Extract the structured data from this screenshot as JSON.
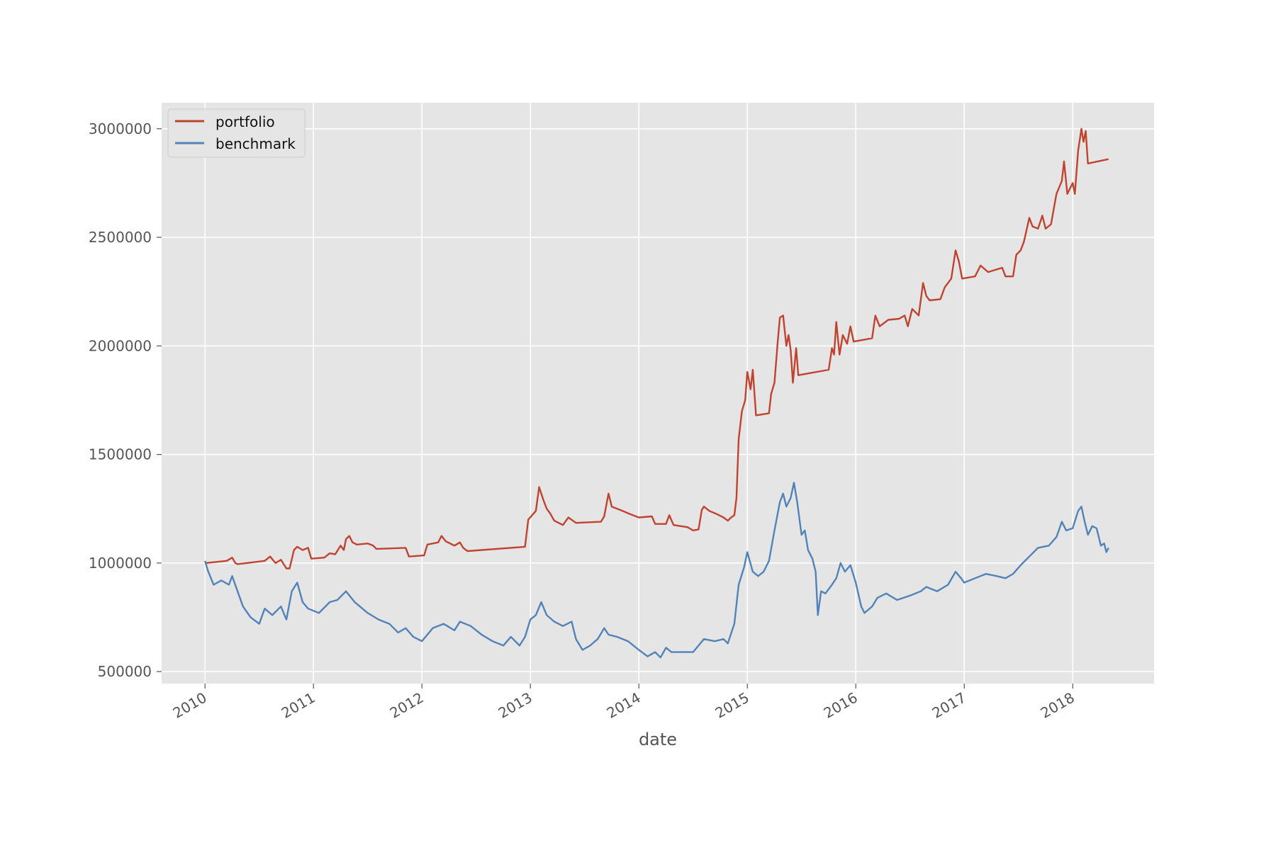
{
  "chart_data": {
    "type": "line",
    "title": "",
    "xlabel": "date",
    "ylabel": "",
    "xlim": [
      2009.6,
      2018.75
    ],
    "ylim": [
      445000,
      3120000
    ],
    "x_ticks": [
      2010,
      2011,
      2012,
      2013,
      2014,
      2015,
      2016,
      2017,
      2018
    ],
    "x_tick_labels": [
      "2010",
      "2011",
      "2012",
      "2013",
      "2014",
      "2015",
      "2016",
      "2017",
      "2018"
    ],
    "y_ticks": [
      500000,
      1000000,
      1500000,
      2000000,
      2500000,
      3000000
    ],
    "y_tick_labels": [
      "500000",
      "1000000",
      "1500000",
      "2000000",
      "2500000",
      "3000000"
    ],
    "grid": true,
    "legend_position": "top-left",
    "legend": [
      "portfolio",
      "benchmark"
    ],
    "colors": {
      "background": "#e5e5e5",
      "grid": "#ffffff",
      "portfolio": "#c0432f",
      "benchmark": "#5283b8"
    },
    "series": [
      {
        "name": "portfolio",
        "color": "#c0432f",
        "points": [
          [
            2010.0,
            1000000
          ],
          [
            2010.2,
            1010000
          ],
          [
            2010.25,
            1025000
          ],
          [
            2010.28,
            1000000
          ],
          [
            2010.3,
            995000
          ],
          [
            2010.55,
            1010000
          ],
          [
            2010.6,
            1030000
          ],
          [
            2010.65,
            1000000
          ],
          [
            2010.7,
            1015000
          ],
          [
            2010.75,
            975000
          ],
          [
            2010.78,
            975000
          ],
          [
            2010.82,
            1060000
          ],
          [
            2010.85,
            1075000
          ],
          [
            2010.9,
            1060000
          ],
          [
            2010.95,
            1070000
          ],
          [
            2010.98,
            1020000
          ],
          [
            2011.1,
            1025000
          ],
          [
            2011.15,
            1045000
          ],
          [
            2011.2,
            1040000
          ],
          [
            2011.25,
            1080000
          ],
          [
            2011.28,
            1060000
          ],
          [
            2011.3,
            1110000
          ],
          [
            2011.33,
            1125000
          ],
          [
            2011.36,
            1095000
          ],
          [
            2011.4,
            1085000
          ],
          [
            2011.5,
            1090000
          ],
          [
            2011.55,
            1080000
          ],
          [
            2011.58,
            1065000
          ],
          [
            2011.85,
            1070000
          ],
          [
            2011.88,
            1030000
          ],
          [
            2012.02,
            1035000
          ],
          [
            2012.05,
            1085000
          ],
          [
            2012.15,
            1095000
          ],
          [
            2012.18,
            1125000
          ],
          [
            2012.22,
            1100000
          ],
          [
            2012.3,
            1080000
          ],
          [
            2012.35,
            1095000
          ],
          [
            2012.38,
            1070000
          ],
          [
            2012.42,
            1055000
          ],
          [
            2012.95,
            1075000
          ],
          [
            2012.98,
            1200000
          ],
          [
            2013.05,
            1240000
          ],
          [
            2013.08,
            1350000
          ],
          [
            2013.12,
            1290000
          ],
          [
            2013.15,
            1250000
          ],
          [
            2013.18,
            1230000
          ],
          [
            2013.22,
            1195000
          ],
          [
            2013.3,
            1175000
          ],
          [
            2013.35,
            1210000
          ],
          [
            2013.42,
            1185000
          ],
          [
            2013.65,
            1190000
          ],
          [
            2013.68,
            1215000
          ],
          [
            2013.72,
            1320000
          ],
          [
            2013.75,
            1260000
          ],
          [
            2013.8,
            1250000
          ],
          [
            2013.85,
            1240000
          ],
          [
            2013.92,
            1225000
          ],
          [
            2014.0,
            1210000
          ],
          [
            2014.12,
            1215000
          ],
          [
            2014.15,
            1180000
          ],
          [
            2014.25,
            1180000
          ],
          [
            2014.28,
            1220000
          ],
          [
            2014.32,
            1175000
          ],
          [
            2014.45,
            1165000
          ],
          [
            2014.5,
            1150000
          ],
          [
            2014.55,
            1155000
          ],
          [
            2014.58,
            1245000
          ],
          [
            2014.6,
            1260000
          ],
          [
            2014.65,
            1240000
          ],
          [
            2014.72,
            1225000
          ],
          [
            2014.78,
            1210000
          ],
          [
            2014.82,
            1195000
          ],
          [
            2014.85,
            1210000
          ],
          [
            2014.88,
            1220000
          ],
          [
            2014.9,
            1300000
          ],
          [
            2014.92,
            1570000
          ],
          [
            2014.95,
            1700000
          ],
          [
            2014.98,
            1750000
          ],
          [
            2015.0,
            1880000
          ],
          [
            2015.03,
            1800000
          ],
          [
            2015.05,
            1890000
          ],
          [
            2015.08,
            1680000
          ],
          [
            2015.2,
            1690000
          ],
          [
            2015.22,
            1780000
          ],
          [
            2015.25,
            1830000
          ],
          [
            2015.28,
            2020000
          ],
          [
            2015.3,
            2130000
          ],
          [
            2015.33,
            2140000
          ],
          [
            2015.36,
            2000000
          ],
          [
            2015.38,
            2050000
          ],
          [
            2015.4,
            1980000
          ],
          [
            2015.42,
            1830000
          ],
          [
            2015.45,
            1990000
          ],
          [
            2015.47,
            1865000
          ],
          [
            2015.75,
            1890000
          ],
          [
            2015.78,
            1990000
          ],
          [
            2015.8,
            1960000
          ],
          [
            2015.82,
            2110000
          ],
          [
            2015.85,
            1960000
          ],
          [
            2015.88,
            2050000
          ],
          [
            2015.92,
            2010000
          ],
          [
            2015.95,
            2090000
          ],
          [
            2015.98,
            2020000
          ],
          [
            2016.15,
            2035000
          ],
          [
            2016.18,
            2140000
          ],
          [
            2016.22,
            2090000
          ],
          [
            2016.3,
            2120000
          ],
          [
            2016.4,
            2125000
          ],
          [
            2016.45,
            2140000
          ],
          [
            2016.48,
            2090000
          ],
          [
            2016.52,
            2170000
          ],
          [
            2016.58,
            2140000
          ],
          [
            2016.62,
            2290000
          ],
          [
            2016.65,
            2230000
          ],
          [
            2016.68,
            2210000
          ],
          [
            2016.78,
            2215000
          ],
          [
            2016.82,
            2270000
          ],
          [
            2016.88,
            2310000
          ],
          [
            2016.92,
            2440000
          ],
          [
            2016.95,
            2390000
          ],
          [
            2016.98,
            2310000
          ],
          [
            2017.1,
            2320000
          ],
          [
            2017.15,
            2370000
          ],
          [
            2017.22,
            2340000
          ],
          [
            2017.35,
            2360000
          ],
          [
            2017.38,
            2320000
          ],
          [
            2017.45,
            2320000
          ],
          [
            2017.48,
            2420000
          ],
          [
            2017.52,
            2440000
          ],
          [
            2017.55,
            2480000
          ],
          [
            2017.6,
            2590000
          ],
          [
            2017.63,
            2550000
          ],
          [
            2017.68,
            2540000
          ],
          [
            2017.72,
            2600000
          ],
          [
            2017.75,
            2540000
          ],
          [
            2017.8,
            2560000
          ],
          [
            2017.85,
            2700000
          ],
          [
            2017.9,
            2760000
          ],
          [
            2017.92,
            2850000
          ],
          [
            2017.95,
            2700000
          ],
          [
            2018.0,
            2750000
          ],
          [
            2018.02,
            2700000
          ],
          [
            2018.05,
            2900000
          ],
          [
            2018.08,
            3000000
          ],
          [
            2018.1,
            2940000
          ],
          [
            2018.12,
            2990000
          ],
          [
            2018.14,
            2840000
          ],
          [
            2018.33,
            2860000
          ]
        ]
      },
      {
        "name": "benchmark",
        "color": "#5283b8",
        "points": [
          [
            2010.0,
            1010000
          ],
          [
            2010.03,
            960000
          ],
          [
            2010.08,
            900000
          ],
          [
            2010.15,
            920000
          ],
          [
            2010.22,
            900000
          ],
          [
            2010.25,
            940000
          ],
          [
            2010.3,
            870000
          ],
          [
            2010.35,
            800000
          ],
          [
            2010.42,
            750000
          ],
          [
            2010.5,
            720000
          ],
          [
            2010.55,
            790000
          ],
          [
            2010.62,
            760000
          ],
          [
            2010.7,
            800000
          ],
          [
            2010.75,
            740000
          ],
          [
            2010.8,
            870000
          ],
          [
            2010.85,
            910000
          ],
          [
            2010.9,
            820000
          ],
          [
            2010.95,
            790000
          ],
          [
            2011.05,
            770000
          ],
          [
            2011.15,
            820000
          ],
          [
            2011.22,
            830000
          ],
          [
            2011.3,
            870000
          ],
          [
            2011.38,
            820000
          ],
          [
            2011.5,
            770000
          ],
          [
            2011.6,
            740000
          ],
          [
            2011.7,
            720000
          ],
          [
            2011.78,
            680000
          ],
          [
            2011.85,
            700000
          ],
          [
            2011.92,
            660000
          ],
          [
            2012.0,
            640000
          ],
          [
            2012.1,
            700000
          ],
          [
            2012.2,
            720000
          ],
          [
            2012.3,
            690000
          ],
          [
            2012.35,
            730000
          ],
          [
            2012.45,
            710000
          ],
          [
            2012.55,
            670000
          ],
          [
            2012.65,
            640000
          ],
          [
            2012.75,
            620000
          ],
          [
            2012.82,
            660000
          ],
          [
            2012.9,
            620000
          ],
          [
            2012.95,
            660000
          ],
          [
            2013.0,
            740000
          ],
          [
            2013.05,
            760000
          ],
          [
            2013.1,
            820000
          ],
          [
            2013.15,
            760000
          ],
          [
            2013.22,
            730000
          ],
          [
            2013.3,
            710000
          ],
          [
            2013.38,
            730000
          ],
          [
            2013.42,
            650000
          ],
          [
            2013.48,
            600000
          ],
          [
            2013.55,
            620000
          ],
          [
            2013.62,
            650000
          ],
          [
            2013.68,
            700000
          ],
          [
            2013.72,
            670000
          ],
          [
            2013.8,
            660000
          ],
          [
            2013.9,
            640000
          ],
          [
            2014.0,
            600000
          ],
          [
            2014.08,
            570000
          ],
          [
            2014.15,
            590000
          ],
          [
            2014.2,
            565000
          ],
          [
            2014.25,
            610000
          ],
          [
            2014.3,
            590000
          ],
          [
            2014.5,
            590000
          ],
          [
            2014.55,
            620000
          ],
          [
            2014.6,
            650000
          ],
          [
            2014.7,
            640000
          ],
          [
            2014.78,
            650000
          ],
          [
            2014.82,
            630000
          ],
          [
            2014.88,
            720000
          ],
          [
            2014.92,
            900000
          ],
          [
            2014.97,
            980000
          ],
          [
            2015.0,
            1050000
          ],
          [
            2015.05,
            960000
          ],
          [
            2015.1,
            940000
          ],
          [
            2015.15,
            960000
          ],
          [
            2015.2,
            1010000
          ],
          [
            2015.25,
            1150000
          ],
          [
            2015.3,
            1280000
          ],
          [
            2015.33,
            1320000
          ],
          [
            2015.36,
            1260000
          ],
          [
            2015.4,
            1300000
          ],
          [
            2015.43,
            1370000
          ],
          [
            2015.46,
            1280000
          ],
          [
            2015.5,
            1130000
          ],
          [
            2015.53,
            1150000
          ],
          [
            2015.56,
            1060000
          ],
          [
            2015.6,
            1020000
          ],
          [
            2015.63,
            960000
          ],
          [
            2015.65,
            760000
          ],
          [
            2015.68,
            870000
          ],
          [
            2015.72,
            860000
          ],
          [
            2015.78,
            900000
          ],
          [
            2015.82,
            930000
          ],
          [
            2015.86,
            1000000
          ],
          [
            2015.9,
            960000
          ],
          [
            2015.95,
            990000
          ],
          [
            2016.0,
            910000
          ],
          [
            2016.05,
            800000
          ],
          [
            2016.08,
            770000
          ],
          [
            2016.15,
            800000
          ],
          [
            2016.2,
            840000
          ],
          [
            2016.28,
            860000
          ],
          [
            2016.38,
            830000
          ],
          [
            2016.5,
            850000
          ],
          [
            2016.6,
            870000
          ],
          [
            2016.65,
            890000
          ],
          [
            2016.75,
            870000
          ],
          [
            2016.85,
            900000
          ],
          [
            2016.92,
            960000
          ],
          [
            2016.97,
            930000
          ],
          [
            2017.0,
            910000
          ],
          [
            2017.1,
            930000
          ],
          [
            2017.2,
            950000
          ],
          [
            2017.3,
            940000
          ],
          [
            2017.38,
            930000
          ],
          [
            2017.45,
            950000
          ],
          [
            2017.52,
            990000
          ],
          [
            2017.6,
            1030000
          ],
          [
            2017.68,
            1070000
          ],
          [
            2017.78,
            1080000
          ],
          [
            2017.85,
            1120000
          ],
          [
            2017.9,
            1190000
          ],
          [
            2017.94,
            1150000
          ],
          [
            2018.0,
            1160000
          ],
          [
            2018.05,
            1240000
          ],
          [
            2018.08,
            1260000
          ],
          [
            2018.11,
            1190000
          ],
          [
            2018.14,
            1130000
          ],
          [
            2018.18,
            1170000
          ],
          [
            2018.22,
            1160000
          ],
          [
            2018.26,
            1080000
          ],
          [
            2018.29,
            1090000
          ],
          [
            2018.31,
            1050000
          ],
          [
            2018.33,
            1070000
          ]
        ]
      }
    ]
  }
}
